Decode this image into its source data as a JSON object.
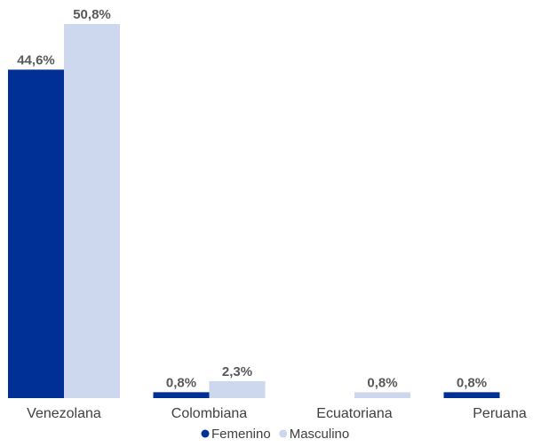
{
  "chart_data": {
    "type": "bar",
    "categories": [
      "Venezolana",
      "Colombiana",
      "Ecuatoriana",
      "Peruana"
    ],
    "series": [
      {
        "name": "Femenino",
        "color": "#002f96",
        "values": [
          44.6,
          0.8,
          0,
          0.8
        ],
        "labels": [
          "44,6%",
          "0,8%",
          "",
          "0,8%"
        ]
      },
      {
        "name": "Masculino",
        "color": "#cdd8ee",
        "values": [
          50.8,
          2.3,
          0.8,
          0
        ],
        "labels": [
          "50,8%",
          "2,3%",
          "0,8%",
          ""
        ]
      }
    ],
    "ylim": [
      0,
      50.8
    ],
    "unit": "%",
    "grid": false,
    "legend_position": "bottom-center",
    "title": "",
    "xlabel": "",
    "ylabel": ""
  }
}
